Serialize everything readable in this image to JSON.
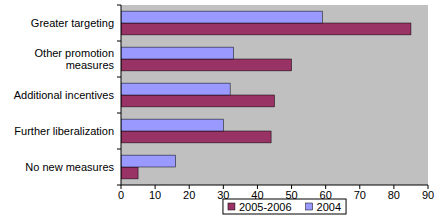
{
  "chart_data": {
    "type": "bar",
    "orientation": "horizontal",
    "categories": [
      "Greater targeting",
      "Other promotion measures",
      "Additional incentives",
      "Further liberalization",
      "No new measures"
    ],
    "series": [
      {
        "name": "2005-2006",
        "color": "#993366",
        "values": [
          85,
          50,
          45,
          44,
          5
        ]
      },
      {
        "name": "2004",
        "color": "#9999ff",
        "values": [
          59,
          33,
          32,
          30,
          16
        ]
      }
    ],
    "xlim": [
      0,
      90
    ],
    "xticks": [
      0,
      10,
      20,
      30,
      40,
      50,
      60,
      70,
      80,
      90
    ],
    "grid": false,
    "legend": "bottom"
  }
}
